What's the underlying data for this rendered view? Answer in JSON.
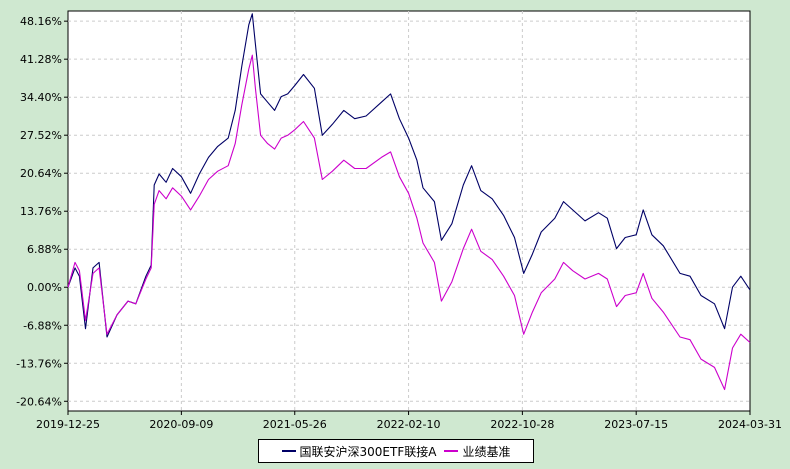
{
  "chart_data": {
    "type": "line",
    "x_start": "2019-12-25",
    "x_end": "2024-03-31",
    "x_ticks": [
      "2019-12-25",
      "2020-09-09",
      "2021-05-26",
      "2022-02-10",
      "2022-10-28",
      "2023-07-15",
      "2024-03-31"
    ],
    "y_ticks": [
      48.16,
      41.28,
      34.4,
      27.52,
      20.64,
      13.76,
      6.88,
      0.0,
      -6.88,
      -13.76,
      -20.64
    ],
    "y_tick_labels": [
      "48.16%",
      "41.28%",
      "34.40%",
      "27.52%",
      "20.64%",
      "13.76%",
      "6.88%",
      "0.00%",
      "-6.88%",
      "-13.76%",
      "-20.64%"
    ],
    "ylim": [
      -22.4,
      50.0
    ],
    "grid": true,
    "legend_position": "bottom-center",
    "series": [
      {
        "name": "国联安沪深300ETF联接A",
        "color": "#000066",
        "points": [
          [
            "2019-12-25",
            0.0
          ],
          [
            "2020-01-10",
            3.5
          ],
          [
            "2020-01-20",
            2.0
          ],
          [
            "2020-02-03",
            -7.5
          ],
          [
            "2020-02-20",
            3.5
          ],
          [
            "2020-03-05",
            4.5
          ],
          [
            "2020-03-23",
            -9.0
          ],
          [
            "2020-04-15",
            -5.0
          ],
          [
            "2020-05-10",
            -2.5
          ],
          [
            "2020-05-28",
            -3.0
          ],
          [
            "2020-06-20",
            2.0
          ],
          [
            "2020-07-02",
            4.0
          ],
          [
            "2020-07-09",
            18.5
          ],
          [
            "2020-07-20",
            20.5
          ],
          [
            "2020-08-05",
            19.0
          ],
          [
            "2020-08-20",
            21.5
          ],
          [
            "2020-09-09",
            20.0
          ],
          [
            "2020-09-30",
            17.0
          ],
          [
            "2020-10-20",
            20.5
          ],
          [
            "2020-11-10",
            23.5
          ],
          [
            "2020-12-01",
            25.5
          ],
          [
            "2020-12-25",
            27.0
          ],
          [
            "2021-01-10",
            32.0
          ],
          [
            "2021-01-25",
            40.0
          ],
          [
            "2021-02-10",
            47.5
          ],
          [
            "2021-02-18",
            49.5
          ],
          [
            "2021-02-25",
            44.0
          ],
          [
            "2021-03-09",
            35.0
          ],
          [
            "2021-03-25",
            33.5
          ],
          [
            "2021-04-10",
            32.0
          ],
          [
            "2021-04-25",
            34.5
          ],
          [
            "2021-05-10",
            35.0
          ],
          [
            "2021-05-26",
            36.5
          ],
          [
            "2021-06-15",
            38.5
          ],
          [
            "2021-07-10",
            36.0
          ],
          [
            "2021-07-28",
            27.5
          ],
          [
            "2021-08-20",
            29.5
          ],
          [
            "2021-09-15",
            32.0
          ],
          [
            "2021-10-10",
            30.5
          ],
          [
            "2021-11-05",
            31.0
          ],
          [
            "2021-12-10",
            33.5
          ],
          [
            "2021-12-31",
            35.0
          ],
          [
            "2022-01-20",
            30.5
          ],
          [
            "2022-02-10",
            27.0
          ],
          [
            "2022-03-01",
            23.0
          ],
          [
            "2022-03-15",
            18.0
          ],
          [
            "2022-04-10",
            15.5
          ],
          [
            "2022-04-26",
            8.5
          ],
          [
            "2022-05-20",
            11.5
          ],
          [
            "2022-06-15",
            18.5
          ],
          [
            "2022-07-04",
            22.0
          ],
          [
            "2022-07-25",
            17.5
          ],
          [
            "2022-08-20",
            16.0
          ],
          [
            "2022-09-15",
            13.0
          ],
          [
            "2022-10-10",
            9.0
          ],
          [
            "2022-10-31",
            2.5
          ],
          [
            "2022-11-20",
            6.0
          ],
          [
            "2022-12-10",
            10.0
          ],
          [
            "2023-01-10",
            12.5
          ],
          [
            "2023-01-30",
            15.5
          ],
          [
            "2023-02-20",
            14.0
          ],
          [
            "2023-03-20",
            12.0
          ],
          [
            "2023-04-20",
            13.5
          ],
          [
            "2023-05-10",
            12.5
          ],
          [
            "2023-05-31",
            7.0
          ],
          [
            "2023-06-20",
            9.0
          ],
          [
            "2023-07-15",
            9.5
          ],
          [
            "2023-07-31",
            14.0
          ],
          [
            "2023-08-20",
            9.5
          ],
          [
            "2023-09-15",
            7.5
          ],
          [
            "2023-10-23",
            2.5
          ],
          [
            "2023-11-15",
            2.0
          ],
          [
            "2023-12-10",
            -1.5
          ],
          [
            "2024-01-10",
            -3.0
          ],
          [
            "2024-02-02",
            -7.5
          ],
          [
            "2024-02-20",
            0.0
          ],
          [
            "2024-03-10",
            2.0
          ],
          [
            "2024-03-31",
            -0.5
          ]
        ]
      },
      {
        "name": "业绩基准",
        "color": "#cc00cc",
        "points": [
          [
            "2019-12-25",
            0.0
          ],
          [
            "2020-01-10",
            4.5
          ],
          [
            "2020-01-20",
            3.0
          ],
          [
            "2020-02-03",
            -6.0
          ],
          [
            "2020-02-20",
            2.5
          ],
          [
            "2020-03-05",
            3.5
          ],
          [
            "2020-03-23",
            -8.5
          ],
          [
            "2020-04-15",
            -5.0
          ],
          [
            "2020-05-10",
            -2.5
          ],
          [
            "2020-05-28",
            -3.0
          ],
          [
            "2020-06-20",
            1.5
          ],
          [
            "2020-07-02",
            3.5
          ],
          [
            "2020-07-09",
            15.0
          ],
          [
            "2020-07-20",
            17.5
          ],
          [
            "2020-08-05",
            16.0
          ],
          [
            "2020-08-20",
            18.0
          ],
          [
            "2020-09-09",
            16.5
          ],
          [
            "2020-09-30",
            14.0
          ],
          [
            "2020-10-20",
            16.5
          ],
          [
            "2020-11-10",
            19.5
          ],
          [
            "2020-12-01",
            21.0
          ],
          [
            "2020-12-25",
            22.0
          ],
          [
            "2021-01-10",
            26.0
          ],
          [
            "2021-01-25",
            33.0
          ],
          [
            "2021-02-10",
            39.5
          ],
          [
            "2021-02-18",
            42.0
          ],
          [
            "2021-02-25",
            36.0
          ],
          [
            "2021-03-09",
            27.5
          ],
          [
            "2021-03-25",
            26.0
          ],
          [
            "2021-04-10",
            25.0
          ],
          [
            "2021-04-25",
            27.0
          ],
          [
            "2021-05-10",
            27.5
          ],
          [
            "2021-05-26",
            28.5
          ],
          [
            "2021-06-15",
            30.0
          ],
          [
            "2021-07-10",
            27.0
          ],
          [
            "2021-07-28",
            19.5
          ],
          [
            "2021-08-20",
            21.0
          ],
          [
            "2021-09-15",
            23.0
          ],
          [
            "2021-10-10",
            21.5
          ],
          [
            "2021-11-05",
            21.5
          ],
          [
            "2021-12-10",
            23.5
          ],
          [
            "2021-12-31",
            24.5
          ],
          [
            "2022-01-20",
            20.0
          ],
          [
            "2022-02-10",
            17.0
          ],
          [
            "2022-03-01",
            12.5
          ],
          [
            "2022-03-15",
            8.0
          ],
          [
            "2022-04-10",
            4.5
          ],
          [
            "2022-04-26",
            -2.5
          ],
          [
            "2022-05-20",
            1.0
          ],
          [
            "2022-06-15",
            7.0
          ],
          [
            "2022-07-04",
            10.5
          ],
          [
            "2022-07-25",
            6.5
          ],
          [
            "2022-08-20",
            5.0
          ],
          [
            "2022-09-15",
            2.0
          ],
          [
            "2022-10-10",
            -1.5
          ],
          [
            "2022-10-31",
            -8.5
          ],
          [
            "2022-11-20",
            -4.5
          ],
          [
            "2022-12-10",
            -1.0
          ],
          [
            "2023-01-10",
            1.5
          ],
          [
            "2023-01-30",
            4.5
          ],
          [
            "2023-02-20",
            3.0
          ],
          [
            "2023-03-20",
            1.5
          ],
          [
            "2023-04-20",
            2.5
          ],
          [
            "2023-05-10",
            1.5
          ],
          [
            "2023-05-31",
            -3.5
          ],
          [
            "2023-06-20",
            -1.5
          ],
          [
            "2023-07-15",
            -1.0
          ],
          [
            "2023-07-31",
            2.5
          ],
          [
            "2023-08-20",
            -2.0
          ],
          [
            "2023-09-15",
            -4.5
          ],
          [
            "2023-10-23",
            -9.0
          ],
          [
            "2023-11-15",
            -9.5
          ],
          [
            "2023-12-10",
            -13.0
          ],
          [
            "2024-01-10",
            -14.5
          ],
          [
            "2024-02-02",
            -18.5
          ],
          [
            "2024-02-20",
            -11.0
          ],
          [
            "2024-03-10",
            -8.5
          ],
          [
            "2024-03-31",
            -10.0
          ]
        ]
      }
    ]
  }
}
